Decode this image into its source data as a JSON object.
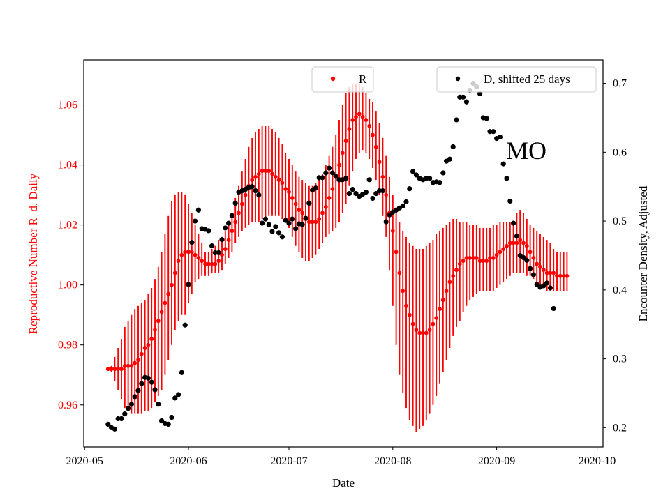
{
  "chart_data": {
    "type": "scatter",
    "annotation": "MO",
    "x_axis": {
      "label": "Date",
      "start": "2020-05-01",
      "end": "2020-10-02",
      "ticks": [
        {
          "label": "2020-05",
          "day": 0
        },
        {
          "label": "2020-06",
          "day": 31
        },
        {
          "label": "2020-07",
          "day": 61
        },
        {
          "label": "2020-08",
          "day": 92
        },
        {
          "label": "2020-09",
          "day": 123
        },
        {
          "label": "2020-10",
          "day": 153
        }
      ]
    },
    "left_axis": {
      "label": "Reproductive Number R_d, Daily",
      "color": "#ff0000",
      "ylim": [
        0.946,
        1.075
      ],
      "ticks": [
        "0.96",
        "0.98",
        "1.00",
        "1.02",
        "1.04",
        "1.06"
      ]
    },
    "right_axis": {
      "label": "Encounter Density, Adjusted",
      "color": "#000000",
      "ylim": [
        0.172,
        0.734
      ],
      "ticks": [
        "0.2",
        "0.3",
        "0.4",
        "0.5",
        "0.6",
        "0.7"
      ]
    },
    "legend": {
      "r_label": "R",
      "d_label": "D, shifted 25 days",
      "r_position": "top-center",
      "d_position": "top-right"
    },
    "series": [
      {
        "name": "R",
        "color": "#ff0000",
        "axis": "left",
        "start_day": 7,
        "points": [
          [
            0.972,
            0.972,
            0.972
          ],
          [
            0.972,
            0.971,
            0.973
          ],
          [
            0.972,
            0.968,
            0.976
          ],
          [
            0.972,
            0.965,
            0.979
          ],
          [
            0.972,
            0.962,
            0.982
          ],
          [
            0.973,
            0.959,
            0.986
          ],
          [
            0.973,
            0.958,
            0.988
          ],
          [
            0.973,
            0.957,
            0.99
          ],
          [
            0.974,
            0.957,
            0.992
          ],
          [
            0.975,
            0.957,
            0.993
          ],
          [
            0.977,
            0.957,
            0.994
          ],
          [
            0.979,
            0.958,
            0.995
          ],
          [
            0.98,
            0.958,
            0.997
          ],
          [
            0.982,
            0.959,
            0.999
          ],
          [
            0.985,
            0.961,
            1.002
          ],
          [
            0.988,
            0.963,
            1.006
          ],
          [
            0.991,
            0.965,
            1.011
          ],
          [
            0.994,
            0.97,
            1.017
          ],
          [
            0.997,
            0.975,
            1.023
          ],
          [
            1.0,
            0.98,
            1.028
          ],
          [
            1.004,
            0.985,
            1.03
          ],
          [
            1.008,
            0.988,
            1.031
          ],
          [
            1.01,
            0.99,
            1.031
          ],
          [
            1.011,
            0.99,
            1.03
          ],
          [
            1.011,
            0.994,
            1.027
          ],
          [
            1.011,
            0.997,
            1.024
          ],
          [
            1.01,
            1.001,
            1.02
          ],
          [
            1.009,
            1.002,
            1.017
          ],
          [
            1.008,
            1.003,
            1.014
          ],
          [
            1.007,
            1.003,
            1.011
          ],
          [
            1.007,
            1.003,
            1.011
          ],
          [
            1.007,
            1.004,
            1.012
          ],
          [
            1.007,
            1.004,
            1.013
          ],
          [
            1.008,
            1.004,
            1.015
          ],
          [
            1.01,
            1.005,
            1.016
          ],
          [
            1.012,
            1.007,
            1.018
          ],
          [
            1.015,
            1.009,
            1.02
          ],
          [
            1.018,
            1.011,
            1.024
          ],
          [
            1.021,
            1.014,
            1.029
          ],
          [
            1.024,
            1.016,
            1.033
          ],
          [
            1.027,
            1.018,
            1.038
          ],
          [
            1.03,
            1.019,
            1.042
          ],
          [
            1.033,
            1.02,
            1.046
          ],
          [
            1.035,
            1.021,
            1.049
          ],
          [
            1.036,
            1.021,
            1.051
          ],
          [
            1.037,
            1.021,
            1.052
          ],
          [
            1.038,
            1.022,
            1.053
          ],
          [
            1.038,
            1.022,
            1.053
          ],
          [
            1.038,
            1.023,
            1.053
          ],
          [
            1.037,
            1.023,
            1.052
          ],
          [
            1.036,
            1.023,
            1.051
          ],
          [
            1.035,
            1.023,
            1.049
          ],
          [
            1.034,
            1.022,
            1.047
          ],
          [
            1.032,
            1.021,
            1.044
          ],
          [
            1.031,
            1.019,
            1.042
          ],
          [
            1.029,
            1.016,
            1.04
          ],
          [
            1.027,
            1.013,
            1.038
          ],
          [
            1.025,
            1.011,
            1.036
          ],
          [
            1.024,
            1.009,
            1.035
          ],
          [
            1.022,
            1.008,
            1.034
          ],
          [
            1.021,
            1.008,
            1.033
          ],
          [
            1.021,
            1.009,
            1.033
          ],
          [
            1.021,
            1.01,
            1.034
          ],
          [
            1.022,
            1.012,
            1.035
          ],
          [
            1.024,
            1.014,
            1.037
          ],
          [
            1.026,
            1.016,
            1.04
          ],
          [
            1.029,
            1.017,
            1.043
          ],
          [
            1.032,
            1.018,
            1.046
          ],
          [
            1.036,
            1.019,
            1.05
          ],
          [
            1.04,
            1.021,
            1.055
          ],
          [
            1.044,
            1.024,
            1.06
          ],
          [
            1.048,
            1.027,
            1.064
          ],
          [
            1.052,
            1.033,
            1.066
          ],
          [
            1.055,
            1.038,
            1.067
          ],
          [
            1.056,
            1.042,
            1.067
          ],
          [
            1.057,
            1.044,
            1.067
          ],
          [
            1.056,
            1.045,
            1.066
          ],
          [
            1.055,
            1.044,
            1.064
          ],
          [
            1.053,
            1.042,
            1.062
          ],
          [
            1.05,
            1.039,
            1.061
          ],
          [
            1.046,
            1.035,
            1.058
          ],
          [
            1.041,
            1.03,
            1.054
          ],
          [
            1.036,
            1.023,
            1.049
          ],
          [
            1.03,
            1.016,
            1.043
          ],
          [
            1.024,
            1.005,
            1.036
          ],
          [
            1.018,
            0.993,
            1.03
          ],
          [
            1.011,
            0.98,
            1.025
          ],
          [
            1.004,
            0.97,
            1.021
          ],
          [
            0.998,
            0.964,
            1.018
          ],
          [
            0.993,
            0.959,
            1.016
          ],
          [
            0.99,
            0.955,
            1.014
          ],
          [
            0.987,
            0.953,
            1.013
          ],
          [
            0.985,
            0.951,
            1.012
          ],
          [
            0.984,
            0.952,
            1.012
          ],
          [
            0.984,
            0.953,
            1.012
          ],
          [
            0.984,
            0.955,
            1.013
          ],
          [
            0.985,
            0.957,
            1.014
          ],
          [
            0.987,
            0.96,
            1.015
          ],
          [
            0.989,
            0.963,
            1.017
          ],
          [
            0.992,
            0.967,
            1.018
          ],
          [
            0.995,
            0.971,
            1.019
          ],
          [
            0.998,
            0.975,
            1.02
          ],
          [
            1.001,
            0.979,
            1.021
          ],
          [
            1.003,
            0.983,
            1.022
          ],
          [
            1.005,
            0.986,
            1.022
          ],
          [
            1.007,
            0.988,
            1.021
          ],
          [
            1.008,
            0.991,
            1.021
          ],
          [
            1.009,
            0.993,
            1.021
          ],
          [
            1.009,
            0.995,
            1.02
          ],
          [
            1.009,
            0.996,
            1.02
          ],
          [
            1.009,
            0.997,
            1.02
          ],
          [
            1.008,
            0.998,
            1.019
          ],
          [
            1.008,
            0.998,
            1.019
          ],
          [
            1.008,
            0.998,
            1.019
          ],
          [
            1.009,
            0.998,
            1.019
          ],
          [
            1.009,
            0.998,
            1.02
          ],
          [
            1.01,
            0.999,
            1.02
          ],
          [
            1.011,
            1.0,
            1.021
          ],
          [
            1.012,
            1.001,
            1.021
          ],
          [
            1.013,
            1.002,
            1.021
          ],
          [
            1.014,
            1.003,
            1.021
          ],
          [
            1.014,
            1.004,
            1.021
          ],
          [
            1.014,
            1.004,
            1.024
          ],
          [
            1.015,
            1.004,
            1.025
          ],
          [
            1.014,
            1.004,
            1.024
          ],
          [
            1.013,
            1.003,
            1.022
          ],
          [
            1.011,
            1.003,
            1.02
          ],
          [
            1.009,
            1.002,
            1.019
          ],
          [
            1.007,
            1.001,
            1.018
          ],
          [
            1.006,
            1.0,
            1.017
          ],
          [
            1.005,
            0.999,
            1.016
          ],
          [
            1.004,
            0.998,
            1.015
          ],
          [
            1.004,
            0.998,
            1.014
          ],
          [
            1.004,
            0.998,
            1.012
          ],
          [
            1.003,
            0.998,
            1.011
          ],
          [
            1.003,
            0.998,
            1.011
          ],
          [
            1.003,
            0.998,
            1.011
          ],
          [
            1.003,
            0.998,
            1.011
          ]
        ]
      },
      {
        "name": "D, shifted 25 days",
        "color": "#000000",
        "axis": "right",
        "start_day": 7,
        "values": [
          0.205,
          0.2,
          0.198,
          0.213,
          0.213,
          0.22,
          0.228,
          0.234,
          0.245,
          0.254,
          0.264,
          0.273,
          0.272,
          0.266,
          0.255,
          0.234,
          0.21,
          0.206,
          0.205,
          0.215,
          0.243,
          0.248,
          0.28,
          0.349,
          0.408,
          0.469,
          0.5,
          0.516,
          0.489,
          0.488,
          0.486,
          0.464,
          0.454,
          0.454,
          0.473,
          0.49,
          0.497,
          0.508,
          0.526,
          0.542,
          0.544,
          0.546,
          0.549,
          0.55,
          0.544,
          0.538,
          0.497,
          0.503,
          0.495,
          0.485,
          0.492,
          0.483,
          0.477,
          0.501,
          0.497,
          0.503,
          0.489,
          0.496,
          0.495,
          0.504,
          0.526,
          0.545,
          0.548,
          0.563,
          0.563,
          0.57,
          0.577,
          0.57,
          0.565,
          0.56,
          0.56,
          0.562,
          0.54,
          0.546,
          0.54,
          0.536,
          0.539,
          0.542,
          0.56,
          0.533,
          0.54,
          0.544,
          0.544,
          0.499,
          0.509,
          0.513,
          0.516,
          0.519,
          0.522,
          0.528,
          0.547,
          0.572,
          0.567,
          0.562,
          0.56,
          0.562,
          0.562,
          0.556,
          0.557,
          0.556,
          0.57,
          0.587,
          0.59,
          0.608,
          0.647,
          0.68,
          0.68,
          0.673,
          0.69,
          0.7,
          0.695,
          0.685,
          0.65,
          0.649,
          0.63,
          0.63,
          0.62,
          0.622,
          0.583,
          0.562,
          0.529,
          0.497,
          0.478,
          0.45,
          0.447,
          0.443,
          0.431,
          0.422,
          0.408,
          0.404,
          0.406,
          0.41,
          0.403,
          0.373
        ]
      }
    ]
  }
}
